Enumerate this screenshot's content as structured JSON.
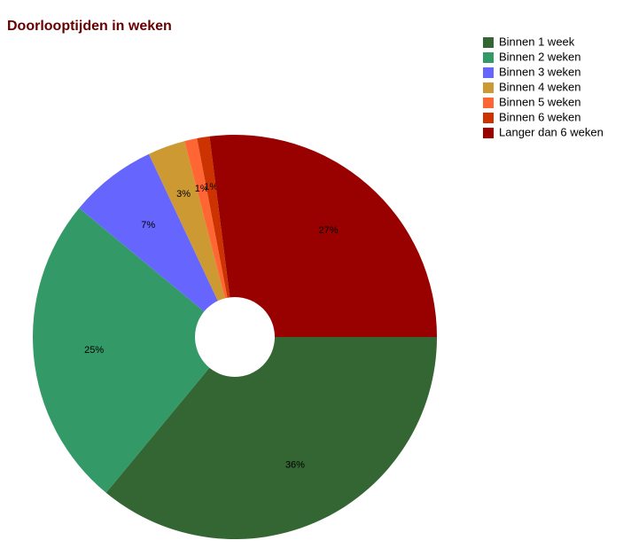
{
  "chart_data": {
    "type": "pie",
    "title": "Doorlooptijden in weken",
    "categories": [
      "Binnen 1 week",
      "Binnen 2 weken",
      "Binnen 3 weken",
      "Binnen 4 weken",
      "Binnen 5 weken",
      "Binnen 6 weken",
      "Langer dan 6 weken"
    ],
    "values": [
      36,
      25,
      7,
      3,
      1,
      1,
      27
    ],
    "value_labels": [
      "36%",
      "25%",
      "7%",
      "3%",
      "1%",
      "1%",
      "27%"
    ],
    "colors": [
      "#336633",
      "#339966",
      "#6666ff",
      "#cc9933",
      "#ff6633",
      "#cc3300",
      "#990000"
    ],
    "legend": "top-right"
  }
}
